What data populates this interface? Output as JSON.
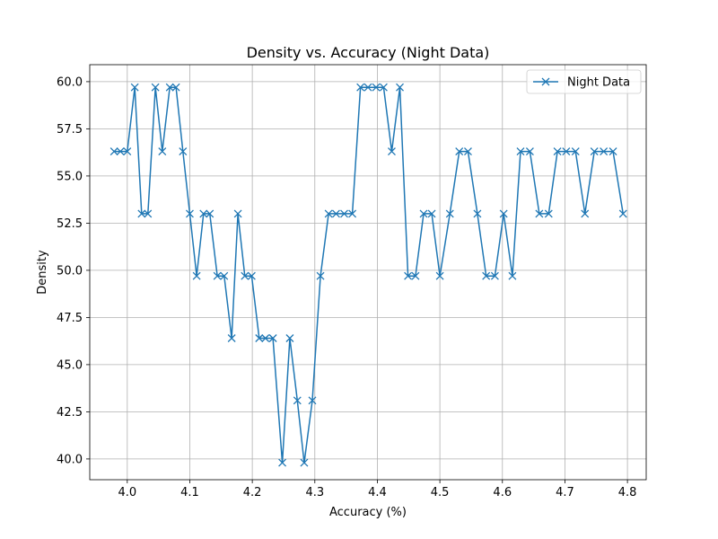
{
  "chart_data": {
    "type": "line",
    "title": "Density vs. Accuracy (Night Data)",
    "xlabel": "Accuracy (%)",
    "ylabel": "Density",
    "xlim": [
      3.94,
      4.83
    ],
    "ylim": [
      38.9,
      60.9
    ],
    "xticks": [
      4.0,
      4.1,
      4.2,
      4.3,
      4.4,
      4.5,
      4.6,
      4.7,
      4.8
    ],
    "xtick_labels": [
      "4.0",
      "4.1",
      "4.2",
      "4.3",
      "4.4",
      "4.5",
      "4.6",
      "4.7",
      "4.8"
    ],
    "yticks": [
      40.0,
      42.5,
      45.0,
      47.5,
      50.0,
      52.5,
      55.0,
      57.5,
      60.0
    ],
    "ytick_labels": [
      "40.0",
      "42.5",
      "45.0",
      "47.5",
      "50.0",
      "52.5",
      "55.0",
      "57.5",
      "60.0"
    ],
    "grid": true,
    "legend_position": "top-right",
    "series": [
      {
        "name": "Night Data",
        "color": "#1f77b4",
        "marker": "x",
        "x": [
          3.979,
          3.989,
          4.0,
          4.012,
          4.023,
          4.033,
          4.045,
          4.056,
          4.068,
          4.078,
          4.089,
          4.1,
          4.111,
          4.122,
          4.132,
          4.144,
          4.155,
          4.167,
          4.177,
          4.188,
          4.199,
          4.211,
          4.221,
          4.233,
          4.248,
          4.26,
          4.272,
          4.283,
          4.296,
          4.309,
          4.322,
          4.334,
          4.347,
          4.36,
          4.373,
          4.385,
          4.398,
          4.41,
          4.423,
          4.436,
          4.449,
          4.461,
          4.474,
          4.487,
          4.5,
          4.516,
          4.531,
          4.545,
          4.56,
          4.574,
          4.588,
          4.602,
          4.616,
          4.629,
          4.644,
          4.659,
          4.674,
          4.688,
          4.702,
          4.717,
          4.732,
          4.747,
          4.762,
          4.777,
          4.793
        ],
        "y": [
          56.3,
          56.3,
          56.3,
          59.7,
          53.0,
          53.0,
          59.7,
          56.3,
          59.7,
          59.7,
          56.3,
          53.0,
          49.7,
          53.0,
          53.0,
          49.7,
          49.7,
          46.4,
          53.0,
          49.7,
          49.7,
          46.4,
          46.4,
          46.4,
          39.8,
          46.4,
          43.1,
          39.8,
          43.1,
          49.7,
          53.0,
          53.0,
          53.0,
          53.0,
          59.7,
          59.7,
          59.7,
          59.7,
          56.3,
          59.7,
          49.7,
          49.7,
          53.0,
          53.0,
          49.7,
          53.0,
          56.3,
          56.3,
          53.0,
          49.7,
          49.7,
          53.0,
          49.7,
          56.3,
          56.3,
          53.0,
          53.0,
          56.3,
          56.3,
          56.3,
          53.0,
          56.3,
          56.3,
          56.3,
          53.0
        ]
      }
    ]
  }
}
